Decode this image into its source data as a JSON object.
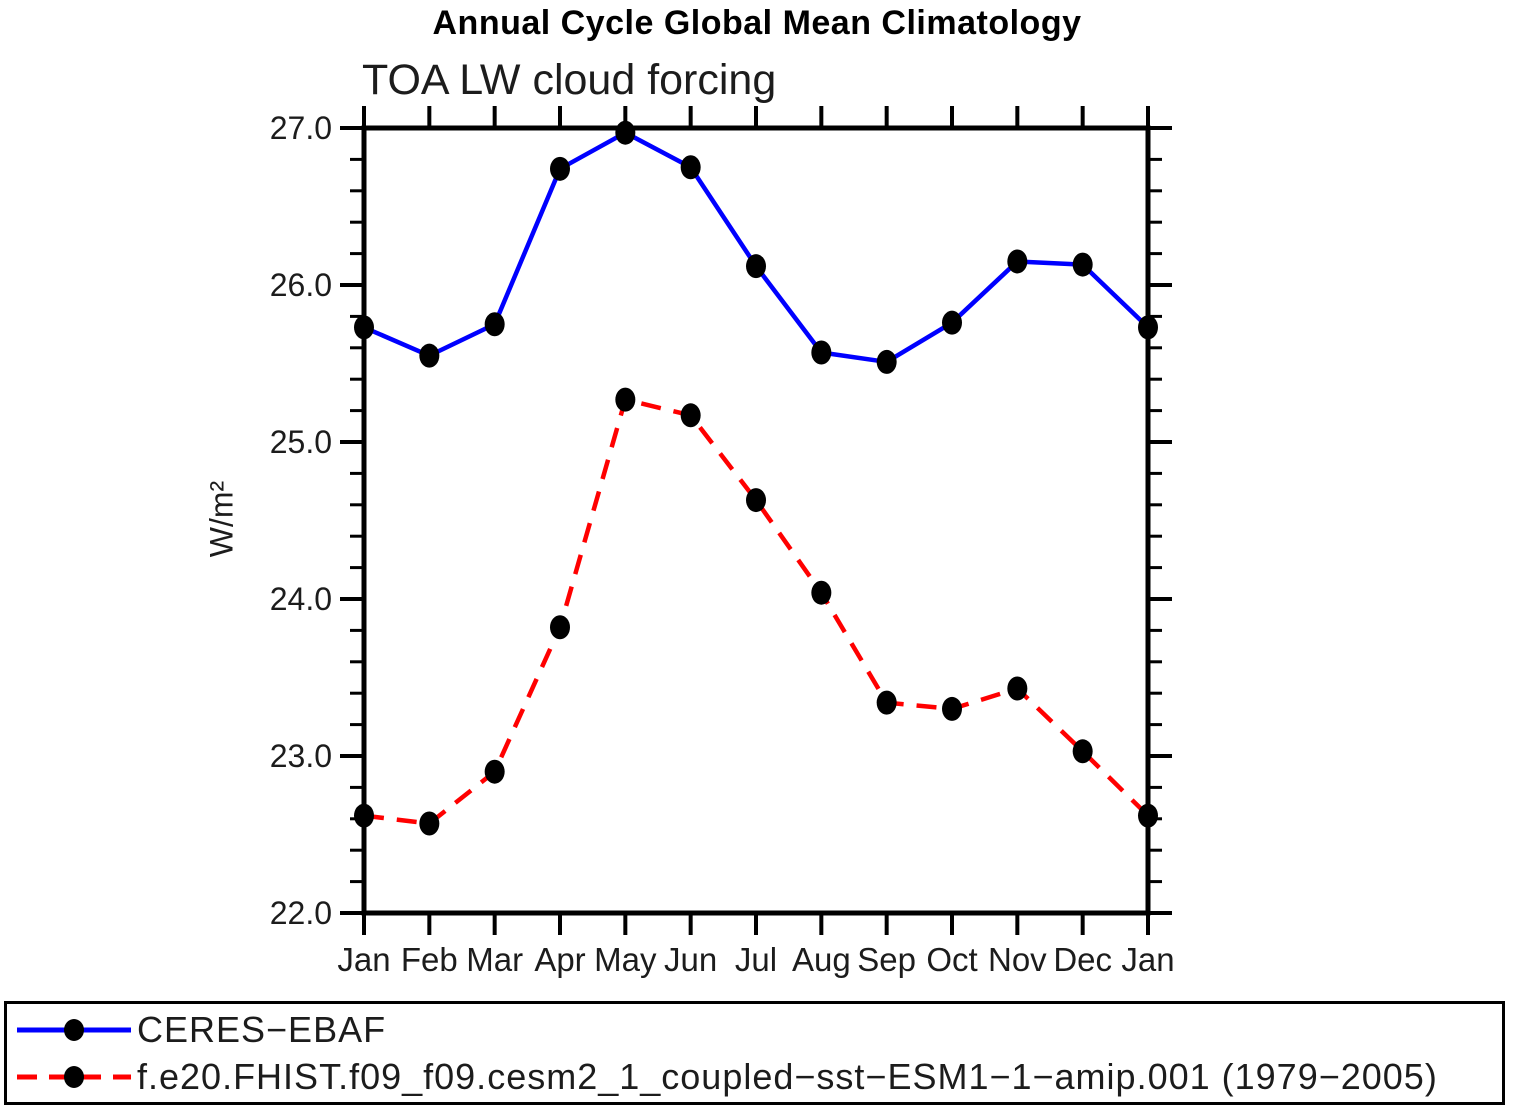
{
  "chart_data": {
    "type": "line",
    "title": "Annual Cycle Global Mean Climatology",
    "subtitle": "TOA LW cloud forcing",
    "ylabel": "W/m²",
    "xlabel": "",
    "categories": [
      "Jan",
      "Feb",
      "Mar",
      "Apr",
      "May",
      "Jun",
      "Jul",
      "Aug",
      "Sep",
      "Oct",
      "Nov",
      "Dec",
      "Jan"
    ],
    "ylim": [
      22.0,
      27.0
    ],
    "yticks": [
      22,
      23,
      24,
      25,
      26,
      27
    ],
    "ytick_labels": [
      "22.0",
      "23.0",
      "24.0",
      "25.0",
      "26.0",
      "27.0"
    ],
    "ytick_minor_step": 0.2,
    "grid": false,
    "legend_position": "bottom",
    "marker": "filled-circle",
    "marker_color": "#000000",
    "axis_color": "#000000",
    "series": [
      {
        "name": "CERES−EBAF",
        "color": "#0000ff",
        "line_style": "solid",
        "values": [
          25.73,
          25.55,
          25.75,
          26.74,
          26.97,
          26.75,
          26.12,
          25.57,
          25.51,
          25.76,
          26.15,
          26.13,
          25.73
        ]
      },
      {
        "name": "f.e20.FHIST.f09_f09.cesm2_1_coupled−sst−ESM1−1−amip.001 (1979−2005)",
        "color": "#ff0000",
        "line_style": "dashed",
        "values": [
          22.62,
          22.57,
          22.9,
          23.82,
          25.27,
          25.17,
          24.63,
          24.04,
          23.34,
          23.3,
          23.43,
          23.03,
          22.62
        ]
      }
    ]
  }
}
